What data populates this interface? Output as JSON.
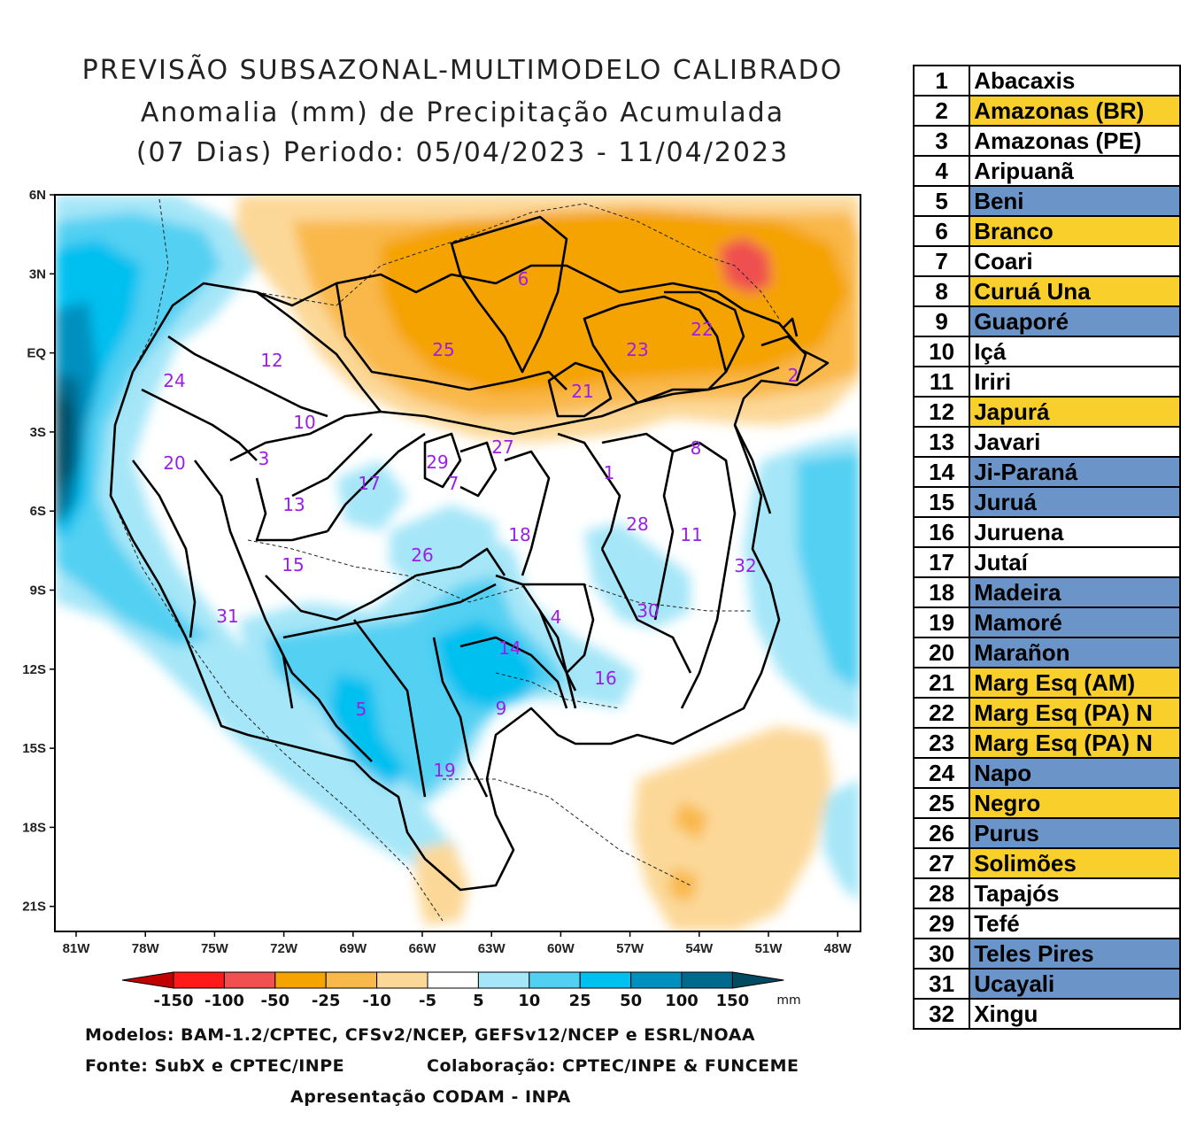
{
  "title": {
    "line1": "PREVISÃO SUBSAZONAL-MULTIMODELO CALIBRADO",
    "line2": "Anomalia (mm) de Precipitação Acumulada",
    "line3": "(07 Dias) Periodo: 05/04/2023 - 11/04/2023"
  },
  "map": {
    "lat_ticks": [
      "6N",
      "3N",
      "EQ",
      "3S",
      "6S",
      "9S",
      "12S",
      "15S",
      "18S",
      "21S"
    ],
    "lon_ticks": [
      "81W",
      "78W",
      "75W",
      "72W",
      "69W",
      "66W",
      "63W",
      "60W",
      "57W",
      "54W",
      "51W",
      "48W"
    ],
    "basin_labels": [
      "1",
      "2",
      "3",
      "4",
      "5",
      "6",
      "7",
      "8",
      "9",
      "10",
      "11",
      "12",
      "13",
      "14",
      "15",
      "16",
      "17",
      "18",
      "19",
      "20",
      "21",
      "22",
      "23",
      "24",
      "25",
      "26",
      "27",
      "28",
      "29",
      "30",
      "31",
      "32"
    ],
    "label_color": "#9b1fe8"
  },
  "colorbar": {
    "ticks": [
      "-150",
      "-100",
      "-50",
      "-25",
      "-10",
      "-5",
      "5",
      "10",
      "25",
      "50",
      "100",
      "150"
    ],
    "unit": "mm",
    "colors": [
      "#c00000",
      "#ff1a1a",
      "#f05050",
      "#f5a300",
      "#f9b84a",
      "#fcd898",
      "#ffffff",
      "#a5e6f8",
      "#52d0f2",
      "#00c0f0",
      "#0090c0",
      "#006a8e",
      "#004a62"
    ]
  },
  "credits": {
    "models": "Modelos: BAM-1.2/CPTEC, CFSv2/NCEP, GEFSv12/NCEP e ESRL/NOAA",
    "source": "Fonte: SubX e CPTEC/INPE",
    "collab": "Colaboração: CPTEC/INPE & FUNCEME",
    "presentation": "Apresentação CODAM - INPA"
  },
  "basins_table": [
    {
      "num": "1",
      "name": "Abacaxis",
      "status": "white"
    },
    {
      "num": "2",
      "name": "Amazonas (BR)",
      "status": "yellow"
    },
    {
      "num": "3",
      "name": "Amazonas (PE)",
      "status": "white"
    },
    {
      "num": "4",
      "name": "Aripuanã",
      "status": "white"
    },
    {
      "num": "5",
      "name": "Beni",
      "status": "blue"
    },
    {
      "num": "6",
      "name": "Branco",
      "status": "yellow"
    },
    {
      "num": "7",
      "name": "Coari",
      "status": "white"
    },
    {
      "num": "8",
      "name": "Curuá Una",
      "status": "yellow"
    },
    {
      "num": "9",
      "name": "Guaporé",
      "status": "blue"
    },
    {
      "num": "10",
      "name": "Içá",
      "status": "white"
    },
    {
      "num": "11",
      "name": "Iriri",
      "status": "white"
    },
    {
      "num": "12",
      "name": "Japurá",
      "status": "yellow"
    },
    {
      "num": "13",
      "name": "Javari",
      "status": "white"
    },
    {
      "num": "14",
      "name": "Ji-Paraná",
      "status": "blue"
    },
    {
      "num": "15",
      "name": "Juruá",
      "status": "blue"
    },
    {
      "num": "16",
      "name": "Juruena",
      "status": "white"
    },
    {
      "num": "17",
      "name": "Jutaí",
      "status": "white"
    },
    {
      "num": "18",
      "name": "Madeira",
      "status": "blue"
    },
    {
      "num": "19",
      "name": "Mamoré",
      "status": "blue"
    },
    {
      "num": "20",
      "name": "Marañon",
      "status": "blue"
    },
    {
      "num": "21",
      "name": "Marg Esq (AM)",
      "status": "yellow"
    },
    {
      "num": "22",
      "name": "Marg Esq (PA) N",
      "status": "yellow"
    },
    {
      "num": "23",
      "name": "Marg Esq (PA) N",
      "status": "yellow"
    },
    {
      "num": "24",
      "name": "Napo",
      "status": "blue"
    },
    {
      "num": "25",
      "name": "Negro",
      "status": "yellow"
    },
    {
      "num": "26",
      "name": "Purus",
      "status": "blue"
    },
    {
      "num": "27",
      "name": "Solimões",
      "status": "yellow"
    },
    {
      "num": "28",
      "name": "Tapajós",
      "status": "white"
    },
    {
      "num": "29",
      "name": "Tefé",
      "status": "white"
    },
    {
      "num": "30",
      "name": "Teles Pires",
      "status": "blue"
    },
    {
      "num": "31",
      "name": "Ucayali",
      "status": "blue"
    },
    {
      "num": "32",
      "name": "Xingu",
      "status": "white"
    }
  ],
  "status_colors": {
    "white": "#ffffff",
    "yellow": "#f9cf2b",
    "blue": "#6b94c9"
  }
}
